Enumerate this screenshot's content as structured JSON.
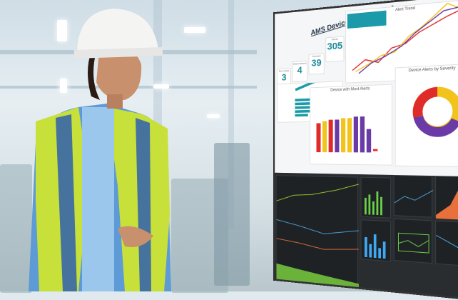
{
  "dashboard": {
    "title": "AMS Device Management",
    "kpis": [
      {
        "label": "Bus stops",
        "value": "3"
      },
      {
        "label": "Intersections",
        "value": "4"
      },
      {
        "label": "Devices",
        "value": "39"
      },
      {
        "label": "Alerts",
        "value": "305"
      }
    ],
    "panels": {
      "alert_trend": "Alert Trend",
      "severity": "Device Alerts by Severity",
      "most_alerts": "Device with Most Alerts"
    },
    "colors": {
      "red": "#e02b2b",
      "yellow": "#f2c31b",
      "purple": "#6a3aa6",
      "teal": "#1b9aaa"
    }
  }
}
